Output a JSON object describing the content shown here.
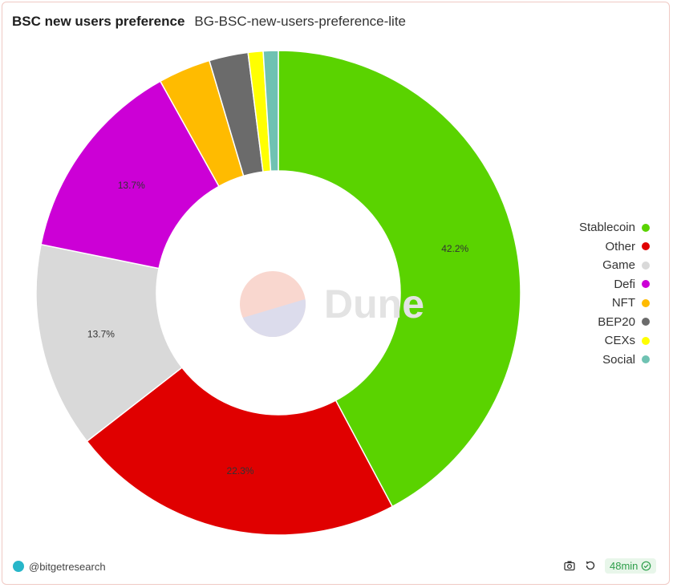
{
  "header": {
    "title": "BSC new users preference",
    "subtitle": "BG-BSC-new-users-preference-lite"
  },
  "watermark": {
    "text": "Dune"
  },
  "chart_data": {
    "type": "pie",
    "donut": true,
    "categories": [
      "Stablecoin",
      "Other",
      "Game",
      "Defi",
      "NFT",
      "BEP20",
      "CEXs",
      "Social"
    ],
    "values": [
      42.2,
      22.3,
      13.7,
      13.7,
      3.5,
      2.6,
      1.0,
      1.0
    ],
    "colors": [
      "#5ad300",
      "#e00000",
      "#d9d9d9",
      "#cc00d6",
      "#ffbb00",
      "#6b6b6b",
      "#ffff00",
      "#6fc2b2"
    ],
    "data_labels": [
      "42.2%",
      "22.3%",
      "13.7%",
      "13.7%",
      "",
      "",
      "",
      ""
    ],
    "legend_position": "right"
  },
  "footer": {
    "author": "@bitgetresearch",
    "refresh_age": "48min",
    "icons": {
      "camera": "camera-icon",
      "refresh": "refresh-icon",
      "check": "check-circle-icon"
    }
  }
}
